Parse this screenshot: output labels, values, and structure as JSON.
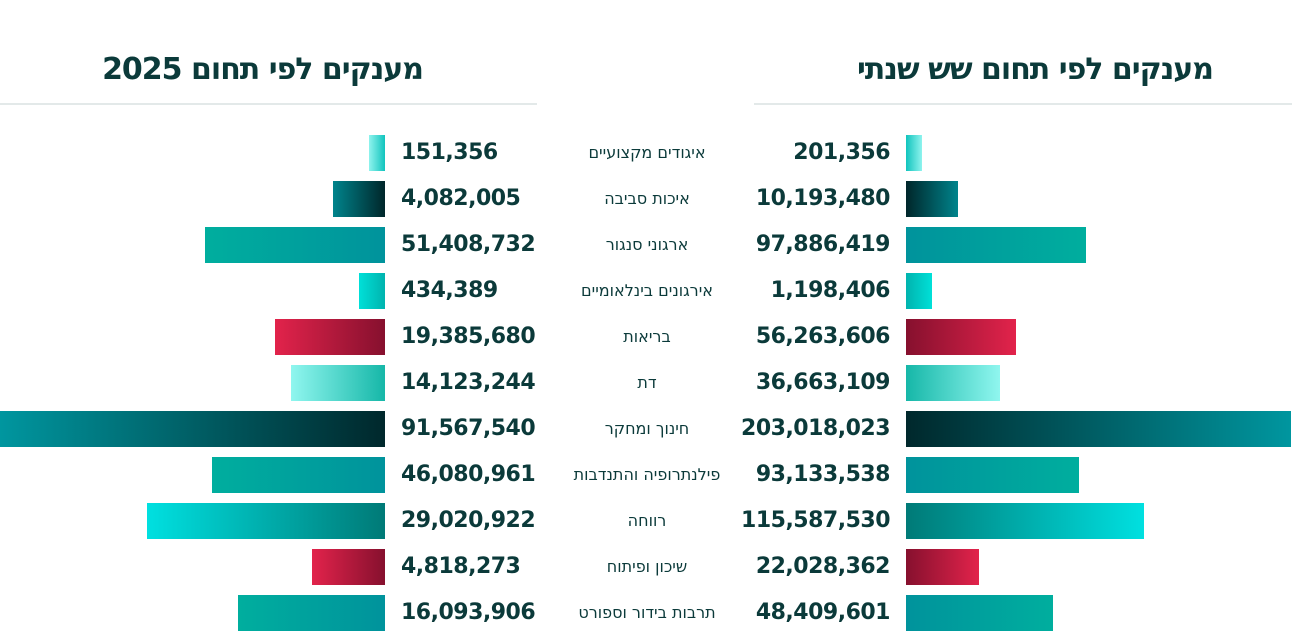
{
  "titles": {
    "left": "מענקים לפי תחום 2025",
    "right": "מענקים לפי תחום שש שנתי"
  },
  "chart_data": [
    {
      "type": "bar",
      "title": "מענקים לפי תחום 2025",
      "orientation": "horizontal",
      "categories": [
        "איגודים מקצועיים",
        "איכות סביבה",
        "ארגוני סנגור",
        "אירגונים בינלאומיים",
        "בריאות",
        "דת",
        "חינוך ומחקר",
        "פילנתרופיה והתנדבות",
        "רווחה",
        "שיכון ופיתוח",
        "תרבות בידור וספורט"
      ],
      "values": [
        151356,
        4082005,
        51408732,
        434389,
        19385680,
        14123244,
        91567540,
        46080961,
        29020922,
        4818273,
        16093906
      ],
      "labels": [
        "151,356",
        "4,082,005",
        "51,408,732",
        "434,389",
        "19,385,680",
        "14,123,244",
        "91,567,540",
        "46,080,961",
        "29,020,922",
        "4,818,273",
        "16,093,906"
      ]
    },
    {
      "type": "bar",
      "title": "מענקים לפי תחום שש שנתי",
      "orientation": "horizontal",
      "categories": [
        "איגודים מקצועיים",
        "איכות סביבה",
        "ארגוני סנגור",
        "אירגונים בינלאומיים",
        "בריאות",
        "דת",
        "חינוך ומחקר",
        "פילנתרופיה והתנדבות",
        "רווחה",
        "שיכון ופיתוח",
        "תרבות בידור וספורט"
      ],
      "values": [
        201356,
        10193480,
        97886419,
        1198406,
        56263606,
        36663109,
        203018023,
        93133538,
        115587530,
        22028362,
        48409601
      ],
      "labels": [
        "201,356",
        "10,193,480",
        "97,886,419",
        "1,198,406",
        "56,263,606",
        "36,663,109",
        "203,018,023",
        "93,133,538",
        "115,587,530",
        "22,028,362",
        "48,409,601"
      ]
    }
  ],
  "bar_colors": [
    [
      "#10c4bd",
      "#8ff3ee"
    ],
    [
      "#00262a",
      "#00848c"
    ],
    [
      "#00939c",
      "#00ae9e"
    ],
    [
      "#00b3ae",
      "#00e0d8"
    ],
    [
      "#86102e",
      "#e2234b"
    ],
    [
      "#16b7a8",
      "#90f6ef"
    ],
    [
      "#00282c",
      "#00969f"
    ],
    [
      "#00939c",
      "#00ae9e"
    ],
    [
      "#007a77",
      "#00e0e0"
    ],
    [
      "#86102e",
      "#e2234b"
    ],
    [
      "#00939c",
      "#00ae9e"
    ]
  ]
}
